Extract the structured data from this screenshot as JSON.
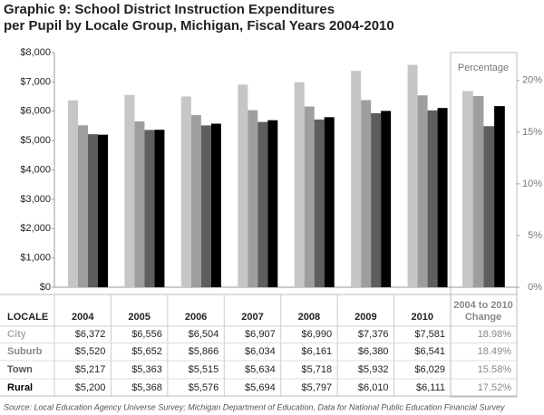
{
  "chart_data": {
    "type": "bar",
    "title": [
      "Graphic 9: School District Instruction Expenditures",
      "per Pupil by Locale Group, Michigan, Fiscal Years 2004-2010"
    ],
    "table_header": "LOCALE",
    "categories": [
      "2004",
      "2005",
      "2006",
      "2007",
      "2008",
      "2009",
      "2010"
    ],
    "series": [
      {
        "name": "City",
        "color": "#c6c6c6",
        "values": [
          6372,
          6556,
          6504,
          6907,
          6990,
          7376,
          7581
        ],
        "value_labels": [
          "$6,372",
          "$6,556",
          "$6,504",
          "$6,907",
          "$6,990",
          "$7,376",
          "$7,581"
        ]
      },
      {
        "name": "Suburb",
        "color": "#9e9e9e",
        "values": [
          5520,
          5652,
          5866,
          6034,
          6161,
          6380,
          6541
        ],
        "value_labels": [
          "$5,520",
          "$5,652",
          "$5,866",
          "$6,034",
          "$6,161",
          "$6,380",
          "$6,541"
        ]
      },
      {
        "name": "Town",
        "color": "#5e5e5e",
        "values": [
          5217,
          5363,
          5515,
          5634,
          5718,
          5932,
          6029
        ],
        "value_labels": [
          "$5,217",
          "$5,363",
          "$5,515",
          "$5,634",
          "$5,718",
          "$5,932",
          "$6,029"
        ]
      },
      {
        "name": "Rural",
        "color": "#000000",
        "values": [
          5200,
          5368,
          5576,
          5694,
          5797,
          6010,
          6111
        ],
        "value_labels": [
          "$5,200",
          "$5,368",
          "$5,576",
          "$5,694",
          "$5,797",
          "$6,010",
          "$6,111"
        ]
      }
    ],
    "ylim": [
      0,
      8000
    ],
    "yticks": [
      {
        "value": 0,
        "label": "$0"
      },
      {
        "value": 1000,
        "label": "$1,000"
      },
      {
        "value": 2000,
        "label": "$2,000"
      },
      {
        "value": 3000,
        "label": "$3,000"
      },
      {
        "value": 4000,
        "label": "$4,000"
      },
      {
        "value": 5000,
        "label": "$5,000"
      },
      {
        "value": 6000,
        "label": "$6,000"
      },
      {
        "value": 7000,
        "label": "$7,000"
      },
      {
        "value": 8000,
        "label": "$8,000"
      }
    ],
    "change": {
      "title": "Percentage",
      "header": [
        "2004 to 2010",
        "Change"
      ],
      "values": [
        18.98,
        18.49,
        15.58,
        17.52
      ],
      "value_labels": [
        "18.98%",
        "18.49%",
        "15.58%",
        "17.52%"
      ],
      "y2lim": [
        0,
        22.7
      ],
      "y2ticks": [
        {
          "value": 0,
          "label": "0%"
        },
        {
          "value": 5,
          "label": "5%"
        },
        {
          "value": 10,
          "label": "10%"
        },
        {
          "value": 15,
          "label": "15%"
        },
        {
          "value": 20,
          "label": "20%"
        }
      ]
    },
    "source": "Source: Local Education Agency Universe Survey; Michigan Department of Education, Data for National Public Education Financial Survey"
  }
}
